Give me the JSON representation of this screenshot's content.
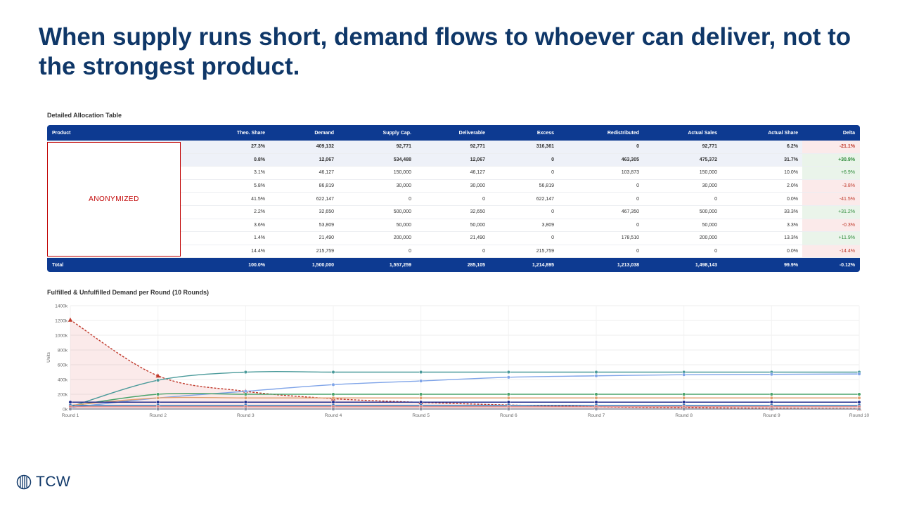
{
  "headline": "When supply runs short, demand flows to whoever can deliver, not to the strongest product.",
  "table": {
    "title": "Detailed Allocation Table",
    "headers": [
      "Product",
      "Theo. Share",
      "Demand",
      "Supply Cap.",
      "Deliverable",
      "Excess",
      "Redistributed",
      "Actual Sales",
      "Actual Share",
      "Delta"
    ],
    "rows": [
      {
        "bold": true,
        "sign": "neg",
        "cells": [
          "27.3%",
          "409,132",
          "92,771",
          "92,771",
          "316,361",
          "0",
          "92,771",
          "6.2%",
          "-21.1%"
        ]
      },
      {
        "bold": true,
        "sign": "pos",
        "cells": [
          "0.8%",
          "12,067",
          "534,488",
          "12,067",
          "0",
          "463,305",
          "475,372",
          "31.7%",
          "+30.9%"
        ]
      },
      {
        "bold": false,
        "sign": "pos",
        "cells": [
          "3.1%",
          "46,127",
          "150,000",
          "46,127",
          "0",
          "103,873",
          "150,000",
          "10.0%",
          "+6.9%"
        ]
      },
      {
        "bold": false,
        "sign": "neg",
        "cells": [
          "5.8%",
          "86,819",
          "30,000",
          "30,000",
          "56,819",
          "0",
          "30,000",
          "2.0%",
          "-3.8%"
        ]
      },
      {
        "bold": false,
        "sign": "neg",
        "cells": [
          "41.5%",
          "622,147",
          "0",
          "0",
          "622,147",
          "0",
          "0",
          "0.0%",
          "-41.5%"
        ]
      },
      {
        "bold": false,
        "sign": "pos",
        "cells": [
          "2.2%",
          "32,650",
          "500,000",
          "32,650",
          "0",
          "467,350",
          "500,000",
          "33.3%",
          "+31.2%"
        ]
      },
      {
        "bold": false,
        "sign": "neg",
        "cells": [
          "3.6%",
          "53,809",
          "50,000",
          "50,000",
          "3,809",
          "0",
          "50,000",
          "3.3%",
          "-0.3%"
        ]
      },
      {
        "bold": false,
        "sign": "pos",
        "cells": [
          "1.4%",
          "21,490",
          "200,000",
          "21,490",
          "0",
          "178,510",
          "200,000",
          "13.3%",
          "+11.9%"
        ]
      },
      {
        "bold": false,
        "sign": "neg",
        "cells": [
          "14.4%",
          "215,759",
          "0",
          "0",
          "215,759",
          "0",
          "0",
          "0.0%",
          "-14.4%"
        ]
      }
    ],
    "total": [
      "Total",
      "100.0%",
      "1,500,000",
      "1,557,259",
      "285,105",
      "1,214,895",
      "1,213,038",
      "1,498,143",
      "99.9%",
      "-0.12%"
    ],
    "anonymized_label": "ANONYMIZED"
  },
  "chart_data": {
    "type": "line",
    "title": "Fulfilled & Unfulfilled Demand per Round (10 Rounds)",
    "xlabel": "",
    "ylabel": "Units",
    "ylim": [
      0,
      1400000
    ],
    "yticks": [
      "0k",
      "200k",
      "400k",
      "600k",
      "800k",
      "1000k",
      "1200k",
      "1400k"
    ],
    "categories": [
      "Round 1",
      "Round 2",
      "Round 3",
      "Round 4",
      "Round 5",
      "Round 6",
      "Round 7",
      "Round 8",
      "Round 9",
      "Round 10"
    ],
    "grid": true,
    "series": [
      {
        "color": "#4a9a9a",
        "dash": false,
        "marker": "circle",
        "values": [
          30000,
          390000,
          500000,
          500000,
          500000,
          500000,
          500000,
          500000,
          500000,
          500000
        ]
      },
      {
        "color": "#7fa4e8",
        "dash": false,
        "marker": "circle",
        "values": [
          20000,
          150000,
          240000,
          330000,
          380000,
          430000,
          450000,
          465000,
          470000,
          475000
        ]
      },
      {
        "color": "#4aa36a",
        "dash": false,
        "marker": "circle",
        "values": [
          40000,
          200000,
          200000,
          200000,
          200000,
          200000,
          200000,
          200000,
          200000,
          200000
        ]
      },
      {
        "color": "#e0a070",
        "dash": false,
        "marker": "circle",
        "values": [
          50000,
          150000,
          150000,
          150000,
          150000,
          150000,
          150000,
          150000,
          150000,
          150000
        ]
      },
      {
        "color": "#1f2d8f",
        "dash": false,
        "marker": "circle",
        "values": [
          92771,
          92771,
          92771,
          92771,
          92771,
          92771,
          92771,
          92771,
          92771,
          92771
        ]
      },
      {
        "color": "#3a7ab8",
        "dash": false,
        "marker": "circle",
        "values": [
          50000,
          50000,
          50000,
          50000,
          50000,
          50000,
          50000,
          50000,
          50000,
          50000
        ]
      },
      {
        "color": "#d98080",
        "dash": false,
        "marker": "circle",
        "values": [
          30000,
          30000,
          30000,
          30000,
          30000,
          30000,
          30000,
          30000,
          30000,
          30000
        ]
      },
      {
        "color": "#8a8fa0",
        "dash": false,
        "marker": "circle",
        "values": [
          0,
          0,
          0,
          0,
          0,
          0,
          0,
          0,
          0,
          0
        ]
      },
      {
        "color": "#c0392b",
        "dash": true,
        "marker": "triangle",
        "fill": "rgba(220,80,80,0.12)",
        "values": [
          1207000,
          450000,
          240000,
          140000,
          90000,
          55000,
          30000,
          18000,
          10000,
          5000
        ]
      }
    ]
  },
  "logo": {
    "text": "TCW",
    "color": "#0f3768"
  }
}
